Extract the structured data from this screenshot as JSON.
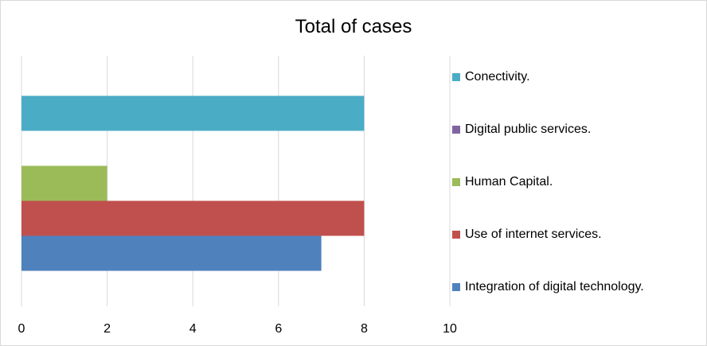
{
  "chart_data": {
    "type": "bar",
    "orientation": "horizontal",
    "title": "Total of cases",
    "xlim": [
      0,
      10
    ],
    "x_ticks": [
      "0",
      "2",
      "4",
      "6",
      "8",
      "10"
    ],
    "grid": true,
    "legend_position": "right",
    "series": [
      {
        "name": "Conectivity.",
        "value": 8,
        "color": "#4BACC6"
      },
      {
        "name": "Digital public services.",
        "value": 0,
        "color": "#8064A2"
      },
      {
        "name": "Human Capital.",
        "value": 2,
        "color": "#9BBB59"
      },
      {
        "name": "Use of internet services.",
        "value": 8,
        "color": "#C0504D"
      },
      {
        "name": "Integration of digital technology.",
        "value": 7,
        "color": "#4F81BD"
      }
    ]
  }
}
